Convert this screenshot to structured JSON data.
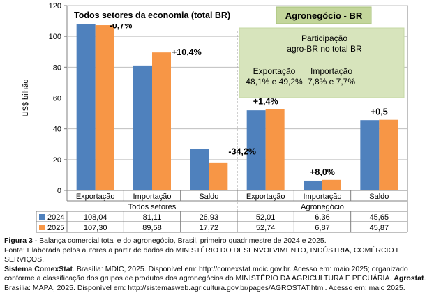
{
  "chart_data": {
    "type": "bar",
    "ylabel": "US$ bilhão",
    "ylim": [
      0,
      120
    ],
    "y_ticks": [
      0,
      20,
      40,
      60,
      80,
      100,
      120
    ],
    "grid": true,
    "categories": [
      "Exportação",
      "Importação",
      "Saldo",
      "Exportação",
      "Importação",
      "Saldo"
    ],
    "groups": [
      {
        "label": "Todos setores",
        "span": [
          0,
          2
        ]
      },
      {
        "label": "Agronegócio",
        "span": [
          3,
          5
        ]
      }
    ],
    "series": [
      {
        "name": "2024",
        "values": [
          108.04,
          81.11,
          26.93,
          52.01,
          6.36,
          45.65
        ],
        "value_labels": [
          "108,04",
          "81,11",
          "26,93",
          "52,01",
          "6,36",
          "45,65"
        ],
        "color": "#4f81bd"
      },
      {
        "name": "2025",
        "values": [
          107.3,
          89.58,
          17.72,
          52.74,
          6.87,
          45.87
        ],
        "value_labels": [
          "107,30",
          "89,58",
          "17,72",
          "52,74",
          "6,87",
          "45,87"
        ],
        "color": "#f79646"
      }
    ],
    "change_labels": [
      "-0,7%",
      "+10,4%",
      "-34,2%",
      "+1,4%",
      "+8,0%",
      "+0,5"
    ],
    "panel_titles": {
      "left": "Todos setores da economia (total BR)",
      "right": "Agronegócio - BR"
    },
    "participation": {
      "title_line1": "Participação",
      "title_line2": "agro-BR no total BR",
      "export_label": "Exportação",
      "export_value": "48,1% e 49,2%",
      "import_label": "Importação",
      "import_value": "7,8% e 7,7%"
    },
    "colors": {
      "green_box": "#d7e4bc",
      "title_box": "#c3d69b",
      "grid": "#bfbfbf"
    }
  },
  "caption": {
    "figure_label": "Figura 3 -",
    "figure_text": " Balança comercial total e do agronegócio, Brasil, primeiro quadrimestre de 2024 e 2025.",
    "source_text": "Fonte: Elaborada pelos autores a partir de dados do MINISTÉRIO DO DESENVOLVIMENTO, INDÚSTRIA, COMÉRCIO E SERVIÇOS.",
    "comex_bold": "Sistema ComexStat",
    "comex_text": ". Brasília: MDIC, 2025. Disponível em: http://comexstat.mdic.gov.br. Acesso em: maio 2025; organizado conforme a classificação dos grupos de produtos dos agronegócios do MINISTÉRIO DA AGRICULTURA E PECUÁRIA. ",
    "agrostat_bold": "Agrostat",
    "agrostat_text": ". Brasília: MAPA, 2025. Disponível em: http://sistemasweb.agricultura.gov.br/pages/AGROSTAT.html. Acesso em: maio 2025."
  }
}
